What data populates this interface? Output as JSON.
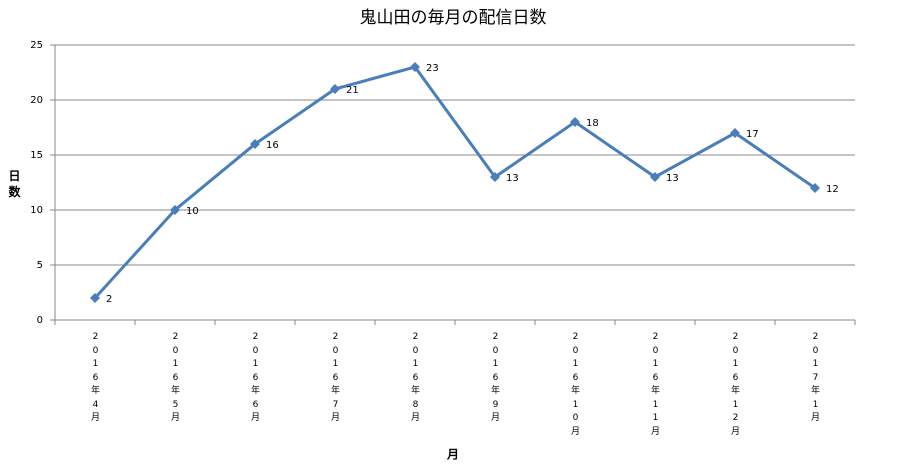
{
  "chart_data": {
    "type": "line",
    "title": "鬼山田の毎月の配信日数",
    "x_label": "月",
    "y_label": "日数",
    "categories": [
      "2016年4月",
      "2016年5月",
      "2016年6月",
      "2016年7月",
      "2016年8月",
      "2016年9月",
      "2016年10月",
      "2016年11月",
      "2016年12月",
      "2017年1月"
    ],
    "values": [
      2,
      10,
      16,
      21,
      23,
      13,
      18,
      13,
      17,
      12
    ],
    "color": "#4a7ebb",
    "ylim": [
      0,
      25
    ],
    "yticks": [
      0,
      5,
      10,
      15,
      20,
      25
    ],
    "grid": true,
    "data_labels": true
  }
}
